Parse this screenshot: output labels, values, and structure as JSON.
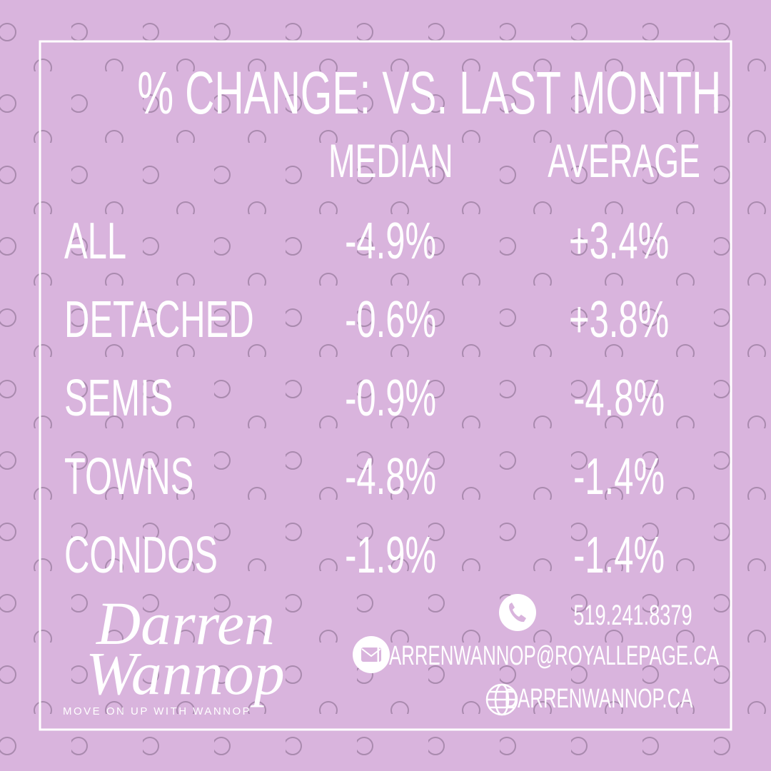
{
  "header": {
    "title": "% CHANGE: VS. LAST MONTH"
  },
  "table": {
    "columns": [
      "MEDIAN",
      "AVERAGE"
    ],
    "rows": [
      {
        "label": "ALL",
        "values": [
          "-4.9%",
          "+3.4%"
        ]
      },
      {
        "label": "DETACHED",
        "values": [
          "-0.6%",
          "+3.8%"
        ]
      },
      {
        "label": "SEMIS",
        "values": [
          "-0.9%",
          "-4.8%"
        ]
      },
      {
        "label": "TOWNS",
        "values": [
          "-4.8%",
          "-1.4%"
        ]
      },
      {
        "label": "CONDOS",
        "values": [
          "-1.9%",
          "-1.4%"
        ]
      }
    ]
  },
  "logo": {
    "line1": "Darren",
    "line2": "Wannop",
    "tagline": "MOVE ON UP WITH WANNOP"
  },
  "contact": {
    "phone": "519.241.8379",
    "email": "DARRENWANNOP@ROYALLEPAGE.CA",
    "website": "DARRENWANNOP.CA"
  }
}
